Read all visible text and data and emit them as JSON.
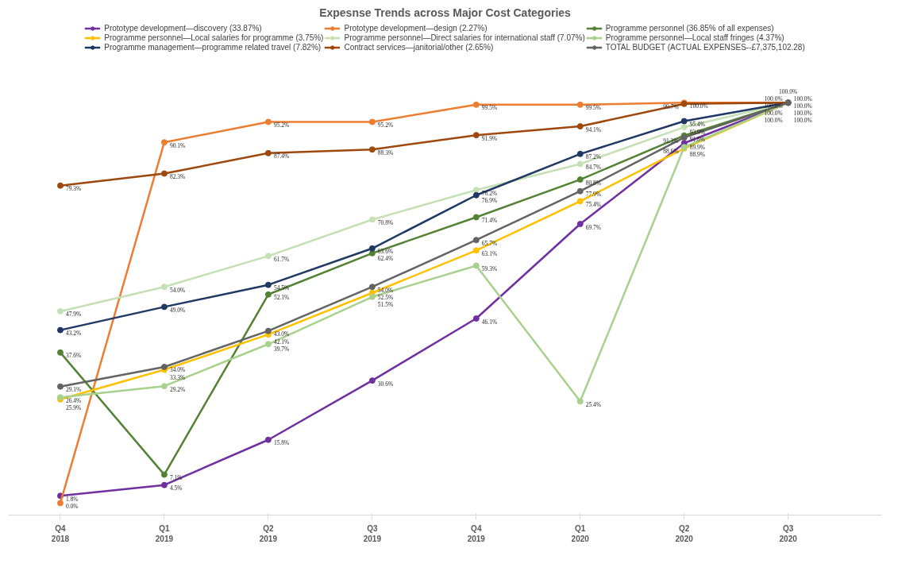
{
  "chart_data": {
    "type": "line",
    "title": "Expesnse Trends across Major Cost Categories",
    "categories": [
      "Q4\n2018",
      "Q1\n2019",
      "Q2\n2019",
      "Q3\n2019",
      "Q4\n2019",
      "Q1\n2020",
      "Q2\n2020",
      "Q3\n2020"
    ],
    "tick_labels": "x",
    "grid": false,
    "legend": "top",
    "marker": "circle",
    "line_style": "solid",
    "series": [
      {
        "name": "Prototype development—discovery (33.87%)",
        "color": "#7030a0",
        "values": [
          1.8,
          4.5,
          15.8,
          30.6,
          46.1,
          69.7,
          89.9,
          100.0
        ],
        "value_labels": [
          "1.8%",
          "4.5%",
          "15.8%",
          "30.6%",
          "46.1%",
          "69.7%",
          "89.9%",
          "100.0%"
        ]
      },
      {
        "name": "Prototype development—design (2.27%)",
        "color": "#ed7d31",
        "values": [
          0.0,
          90.1,
          95.2,
          95.2,
          99.5,
          99.5,
          100.0,
          100.0
        ],
        "value_labels": [
          "0.0%",
          "90.1%",
          "95.2%",
          "95.2%",
          "99.5%",
          "99.5%",
          "100.0%",
          "100.0%"
        ]
      },
      {
        "name": "Programme personnel (36.85% of all expenses)",
        "color": "#548235",
        "values": [
          37.6,
          7.1,
          52.1,
          62.4,
          71.4,
          80.8,
          91.8,
          100.0
        ],
        "value_labels": [
          "37.6%",
          "7.1%",
          "52.1%",
          "62.4%",
          "71.4%",
          "80.8%",
          "91.8%",
          "100.0%"
        ]
      },
      {
        "name": "Programme personnel—Local salaries for programme (3.75%)",
        "color": "#ffc000",
        "values": [
          25.9,
          33.3,
          42.1,
          52.5,
          63.1,
          75.4,
          88.6,
          100.0
        ],
        "value_labels": [
          "25.9%",
          "33.3%",
          "42.1%",
          "52.5%",
          "63.1%",
          "75.4%",
          "88.6%",
          "100.0%"
        ]
      },
      {
        "name": "Programme personnel—Direct salaries for international staff (7.07%)",
        "color": "#c5e0b4",
        "values": [
          47.9,
          54.0,
          61.7,
          70.8,
          78.2,
          84.7,
          93.9,
          100.0
        ],
        "value_labels": [
          "47.9%",
          "54.0%",
          "61.7%",
          "70.8%",
          "78.2%",
          "84.7%",
          "93.9%",
          "100.0%"
        ]
      },
      {
        "name": "Programme personnel—Local staff fringes (4.37%)",
        "color": "#a9d18e",
        "values": [
          26.4,
          29.2,
          39.7,
          51.5,
          59.3,
          25.4,
          88.9,
          100.0
        ],
        "value_labels": [
          "26.4%",
          "29.2%",
          "39.7%",
          "51.5%",
          "59.3%",
          "25.4%",
          "88.9%",
          "100.0%"
        ]
      },
      {
        "name": "Programme management—programme related travel (7.82%)",
        "color": "#203864",
        "values": [
          43.2,
          49.0,
          54.5,
          63.6,
          76.9,
          87.2,
          95.4,
          100.0
        ],
        "value_labels": [
          "43.2%",
          "49.0%",
          "54.5%",
          "63.6%",
          "76.9%",
          "87.2%",
          "95.4%",
          "100.0%"
        ]
      },
      {
        "name": "Contract services—janitorial/other (2.65%)",
        "color": "#9e480e",
        "values": [
          79.3,
          82.3,
          87.4,
          88.3,
          91.9,
          94.1,
          99.7,
          100.0
        ],
        "value_labels": [
          "79.3%",
          "82.3%",
          "87.4%",
          "88.3%",
          "91.9%",
          "94.1%",
          "99.7%",
          "100.0%"
        ]
      },
      {
        "name": "TOTAL BUDGET (ACTUAL EXPENSES--£7,375,102.28)",
        "color": "#636363",
        "values": [
          29.1,
          34.0,
          43.0,
          54.0,
          65.7,
          77.9,
          91.3,
          100.0
        ],
        "value_labels": [
          "29.1%",
          "34.0%",
          "43.0%",
          "54.0%",
          "65.7%",
          "77.9%",
          "91.3%",
          "100.0%"
        ]
      }
    ]
  }
}
